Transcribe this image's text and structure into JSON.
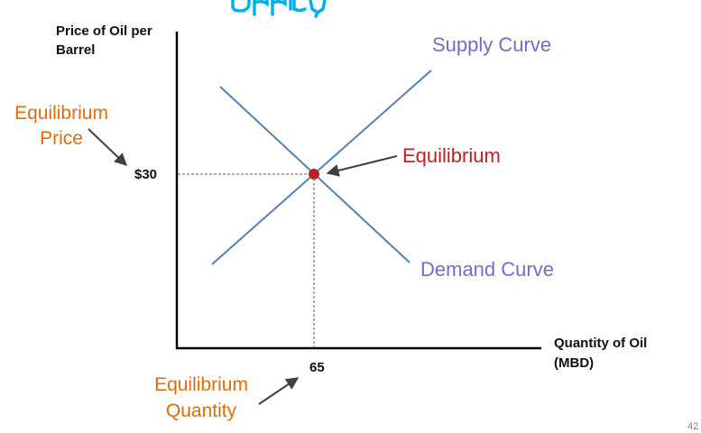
{
  "colors": {
    "curve": "#4f81bd",
    "curve_label": "#7b68cc",
    "orange": "#e36c09",
    "equilibrium": "#c0201e",
    "title": "#00b0f0",
    "arrow": "#404040",
    "axis": "#000000",
    "guide": "#595959"
  },
  "axes": {
    "y_label_line1": "Price of Oil per",
    "y_label_line2": "Barrel",
    "x_label_line1": "Quantity of Oil",
    "x_label_line2": "(MBD)"
  },
  "curves": {
    "supply_label": "Supply Curve",
    "demand_label": "Demand Curve"
  },
  "equilibrium": {
    "label": "Equilibrium",
    "price_value": "$30",
    "quantity_value": "65",
    "price_label_line1": "Equilibrium",
    "price_label_line2": "Price",
    "quantity_label_line1": "Equilibrium",
    "quantity_label_line2": "Quantity"
  },
  "page_number": "42"
}
